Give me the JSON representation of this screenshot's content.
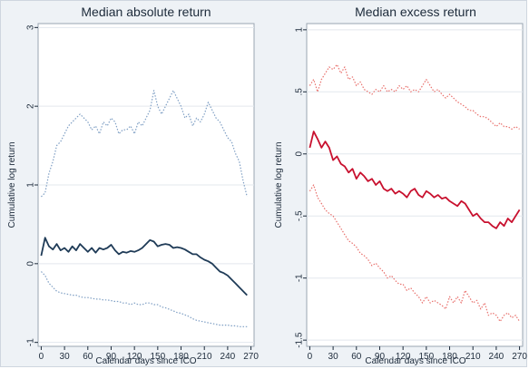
{
  "chart_data": [
    {
      "type": "line",
      "title": "Median absolute return",
      "xlabel": "Calendar days since ICO",
      "ylabel": "Cumulative log return",
      "xlim": [
        -4,
        274
      ],
      "ylim": [
        -1.05,
        3.05
      ],
      "x_ticks": [
        0,
        30,
        60,
        90,
        120,
        150,
        180,
        210,
        240,
        270
      ],
      "y_ticks": [
        -1,
        0,
        1,
        2,
        3
      ],
      "grid": "horizontal",
      "colors": {
        "median": "#1f3b57",
        "band": "#7f9fc4"
      },
      "series": [
        {
          "role": "median",
          "style": "solid",
          "x": [
            0,
            5,
            10,
            15,
            20,
            25,
            30,
            35,
            40,
            45,
            50,
            55,
            60,
            65,
            70,
            75,
            80,
            85,
            90,
            95,
            100,
            105,
            110,
            115,
            120,
            125,
            130,
            135,
            140,
            145,
            150,
            155,
            160,
            165,
            170,
            175,
            180,
            185,
            190,
            195,
            200,
            205,
            210,
            215,
            220,
            225,
            230,
            235,
            240,
            245,
            250,
            255,
            260,
            265
          ],
          "values": [
            0.1,
            0.33,
            0.22,
            0.18,
            0.25,
            0.17,
            0.2,
            0.15,
            0.22,
            0.17,
            0.25,
            0.2,
            0.15,
            0.2,
            0.14,
            0.2,
            0.18,
            0.2,
            0.24,
            0.17,
            0.12,
            0.15,
            0.14,
            0.16,
            0.15,
            0.17,
            0.2,
            0.25,
            0.3,
            0.28,
            0.22,
            0.24,
            0.25,
            0.24,
            0.2,
            0.21,
            0.2,
            0.18,
            0.15,
            0.12,
            0.12,
            0.08,
            0.05,
            0.03,
            0.0,
            -0.05,
            -0.1,
            -0.12,
            -0.15,
            -0.2,
            -0.25,
            -0.3,
            -0.35,
            -0.4
          ]
        },
        {
          "role": "upper-band",
          "style": "dotted",
          "x": [
            0,
            5,
            10,
            15,
            20,
            25,
            30,
            35,
            40,
            45,
            50,
            55,
            60,
            65,
            70,
            75,
            80,
            85,
            90,
            95,
            100,
            105,
            110,
            115,
            120,
            125,
            130,
            135,
            140,
            145,
            150,
            155,
            160,
            165,
            170,
            175,
            180,
            185,
            190,
            195,
            200,
            205,
            210,
            215,
            220,
            225,
            230,
            235,
            240,
            245,
            250,
            255,
            260,
            265
          ],
          "values": [
            0.85,
            0.9,
            1.15,
            1.3,
            1.5,
            1.55,
            1.65,
            1.75,
            1.8,
            1.85,
            1.9,
            1.85,
            1.8,
            1.7,
            1.75,
            1.65,
            1.8,
            1.75,
            1.85,
            1.8,
            1.65,
            1.7,
            1.7,
            1.75,
            1.65,
            1.8,
            1.75,
            1.85,
            1.95,
            2.2,
            2.0,
            1.9,
            2.0,
            2.1,
            2.2,
            2.1,
            2.0,
            1.85,
            1.9,
            1.75,
            1.85,
            1.8,
            1.9,
            2.05,
            1.95,
            1.85,
            1.8,
            1.7,
            1.6,
            1.55,
            1.4,
            1.3,
            1.05,
            0.85
          ]
        },
        {
          "role": "lower-band",
          "style": "dotted",
          "x": [
            0,
            5,
            10,
            15,
            20,
            25,
            30,
            35,
            40,
            45,
            50,
            55,
            60,
            65,
            70,
            75,
            80,
            85,
            90,
            95,
            100,
            105,
            110,
            115,
            120,
            125,
            130,
            135,
            140,
            145,
            150,
            155,
            160,
            165,
            170,
            175,
            180,
            185,
            190,
            195,
            200,
            205,
            210,
            215,
            220,
            225,
            230,
            235,
            240,
            245,
            250,
            255,
            260,
            265
          ],
          "values": [
            -0.1,
            -0.15,
            -0.25,
            -0.3,
            -0.35,
            -0.37,
            -0.38,
            -0.39,
            -0.4,
            -0.4,
            -0.42,
            -0.43,
            -0.43,
            -0.44,
            -0.45,
            -0.45,
            -0.46,
            -0.46,
            -0.47,
            -0.48,
            -0.48,
            -0.5,
            -0.5,
            -0.52,
            -0.5,
            -0.52,
            -0.52,
            -0.5,
            -0.5,
            -0.52,
            -0.52,
            -0.55,
            -0.56,
            -0.58,
            -0.6,
            -0.62,
            -0.63,
            -0.65,
            -0.67,
            -0.7,
            -0.72,
            -0.73,
            -0.74,
            -0.75,
            -0.76,
            -0.77,
            -0.78,
            -0.78,
            -0.78,
            -0.79,
            -0.79,
            -0.8,
            -0.8,
            -0.8
          ]
        }
      ]
    },
    {
      "type": "line",
      "title": "Median excess return",
      "xlabel": "Calendar days since ICO",
      "ylabel": "Cumulative log return",
      "xlim": [
        -4,
        274
      ],
      "ylim": [
        -1.55,
        1.05
      ],
      "x_ticks": [
        0,
        30,
        60,
        90,
        120,
        150,
        180,
        210,
        240,
        270
      ],
      "y_ticks": [
        -1.5,
        -1,
        -0.5,
        0,
        0.5,
        1
      ],
      "y_tick_labels": [
        "-1.5",
        "-1",
        "-.5",
        "0",
        ".5",
        "1"
      ],
      "grid": "horizontal",
      "colors": {
        "median": "#c8102e",
        "band": "#e8706c"
      },
      "series": [
        {
          "role": "median",
          "style": "solid",
          "x": [
            0,
            5,
            10,
            15,
            20,
            25,
            30,
            35,
            40,
            45,
            50,
            55,
            60,
            65,
            70,
            75,
            80,
            85,
            90,
            95,
            100,
            105,
            110,
            115,
            120,
            125,
            130,
            135,
            140,
            145,
            150,
            155,
            160,
            165,
            170,
            175,
            180,
            185,
            190,
            195,
            200,
            205,
            210,
            215,
            220,
            225,
            230,
            235,
            240,
            245,
            250,
            255,
            260,
            265,
            270
          ],
          "values": [
            0.05,
            0.18,
            0.12,
            0.05,
            0.1,
            0.05,
            -0.05,
            -0.02,
            -0.08,
            -0.1,
            -0.15,
            -0.12,
            -0.2,
            -0.15,
            -0.18,
            -0.22,
            -0.2,
            -0.25,
            -0.22,
            -0.28,
            -0.3,
            -0.28,
            -0.32,
            -0.3,
            -0.32,
            -0.35,
            -0.3,
            -0.28,
            -0.33,
            -0.35,
            -0.3,
            -0.32,
            -0.35,
            -0.33,
            -0.36,
            -0.35,
            -0.38,
            -0.4,
            -0.42,
            -0.38,
            -0.4,
            -0.45,
            -0.5,
            -0.48,
            -0.52,
            -0.55,
            -0.55,
            -0.58,
            -0.6,
            -0.55,
            -0.58,
            -0.52,
            -0.55,
            -0.5,
            -0.45
          ]
        },
        {
          "role": "upper-band",
          "style": "dotted",
          "x": [
            0,
            5,
            10,
            15,
            20,
            25,
            30,
            35,
            40,
            45,
            50,
            55,
            60,
            65,
            70,
            75,
            80,
            85,
            90,
            95,
            100,
            105,
            110,
            115,
            120,
            125,
            130,
            135,
            140,
            145,
            150,
            155,
            160,
            165,
            170,
            175,
            180,
            185,
            190,
            195,
            200,
            205,
            210,
            215,
            220,
            225,
            230,
            235,
            240,
            245,
            250,
            255,
            260,
            265,
            270
          ],
          "values": [
            0.55,
            0.6,
            0.5,
            0.6,
            0.65,
            0.7,
            0.68,
            0.72,
            0.65,
            0.7,
            0.6,
            0.62,
            0.55,
            0.58,
            0.52,
            0.5,
            0.48,
            0.52,
            0.5,
            0.55,
            0.5,
            0.52,
            0.5,
            0.55,
            0.52,
            0.55,
            0.5,
            0.52,
            0.5,
            0.55,
            0.6,
            0.55,
            0.5,
            0.52,
            0.48,
            0.45,
            0.48,
            0.45,
            0.42,
            0.4,
            0.38,
            0.35,
            0.35,
            0.32,
            0.3,
            0.3,
            0.28,
            0.25,
            0.22,
            0.25,
            0.22,
            0.22,
            0.2,
            0.22,
            0.2
          ]
        },
        {
          "role": "lower-band",
          "style": "dotted",
          "x": [
            0,
            5,
            10,
            15,
            20,
            25,
            30,
            35,
            40,
            45,
            50,
            55,
            60,
            65,
            70,
            75,
            80,
            85,
            90,
            95,
            100,
            105,
            110,
            115,
            120,
            125,
            130,
            135,
            140,
            145,
            150,
            155,
            160,
            165,
            170,
            175,
            180,
            185,
            190,
            195,
            200,
            205,
            210,
            215,
            220,
            225,
            230,
            235,
            240,
            245,
            250,
            255,
            260,
            265,
            270
          ],
          "values": [
            -0.3,
            -0.25,
            -0.35,
            -0.4,
            -0.45,
            -0.48,
            -0.5,
            -0.55,
            -0.6,
            -0.65,
            -0.7,
            -0.72,
            -0.75,
            -0.8,
            -0.82,
            -0.85,
            -0.9,
            -0.88,
            -0.92,
            -0.95,
            -1.0,
            -0.98,
            -1.02,
            -1.05,
            -1.05,
            -1.1,
            -1.08,
            -1.12,
            -1.15,
            -1.2,
            -1.15,
            -1.2,
            -1.18,
            -1.2,
            -1.22,
            -1.25,
            -1.15,
            -1.2,
            -1.15,
            -1.2,
            -1.1,
            -1.15,
            -1.2,
            -1.18,
            -1.25,
            -1.2,
            -1.3,
            -1.28,
            -1.3,
            -1.35,
            -1.3,
            -1.28,
            -1.32,
            -1.3,
            -1.35
          ]
        }
      ]
    }
  ]
}
